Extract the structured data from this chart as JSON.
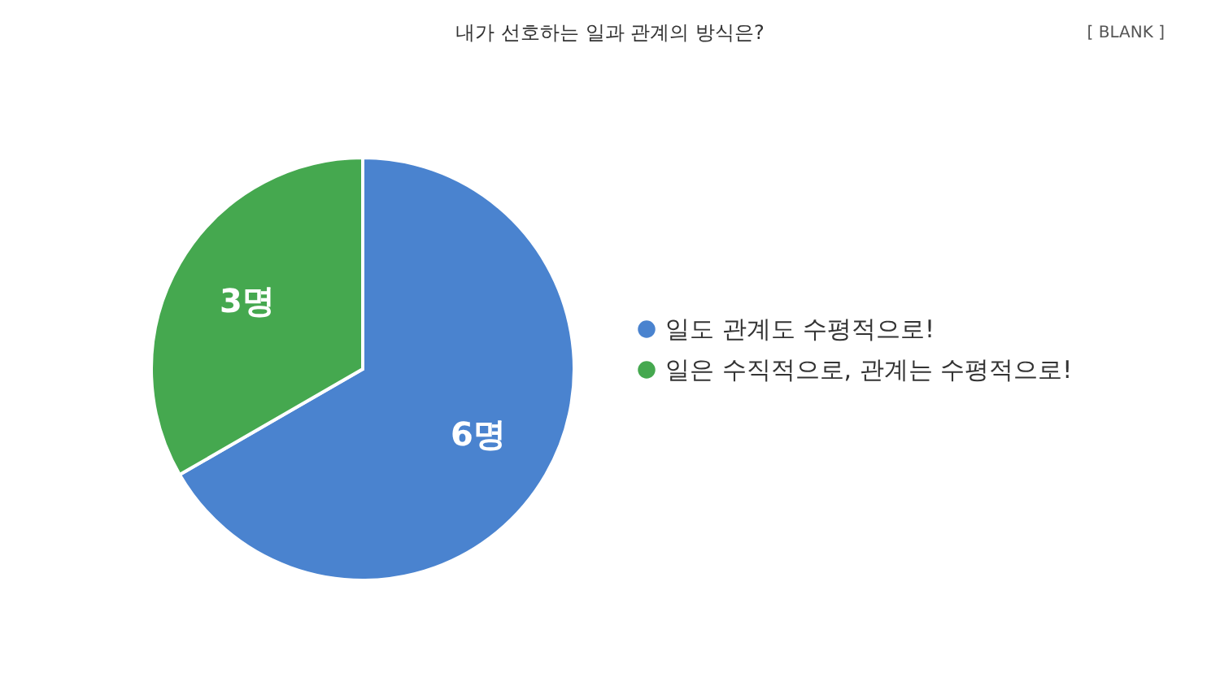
{
  "chart_data": {
    "type": "pie",
    "title": "내가 선호하는 일과 관계의 방식은?",
    "categories": [
      "일도 관계도 수평적으로!",
      "일은 수직적으로, 관계는 수평적으로!"
    ],
    "values": [
      6,
      3
    ],
    "colors": [
      "#4a83cf",
      "#45a84f"
    ],
    "value_labels": [
      "6명",
      "3명"
    ],
    "annotations": [
      "[ BLANK ]"
    ],
    "legend": "right"
  }
}
